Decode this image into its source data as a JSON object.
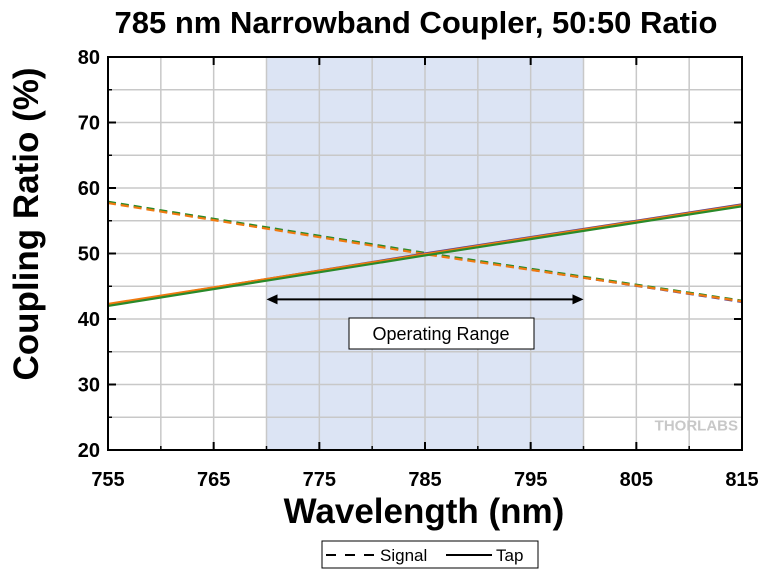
{
  "chart_data": {
    "type": "line",
    "title": "785 nm Narrowband Coupler, 50:50 Ratio",
    "xlabel": "Wavelength (nm)",
    "ylabel": "Coupling Ratio (%)",
    "xlim": [
      755,
      815
    ],
    "ylim": [
      20,
      80
    ],
    "xticks": [
      755,
      765,
      775,
      785,
      795,
      805,
      815
    ],
    "yticks": [
      20,
      30,
      40,
      50,
      60,
      70,
      80
    ],
    "grid": true,
    "shaded_region": {
      "x": [
        770,
        800
      ],
      "color": "#dce4f4"
    },
    "annotation": {
      "text": "Operating Range",
      "x_range": [
        770,
        800
      ],
      "y": 43
    },
    "series": [
      {
        "name": "Signal",
        "style": "dashed",
        "color": "#5a3f8c",
        "x": [
          755,
          785,
          815
        ],
        "y": [
          57.8,
          50.0,
          42.6
        ]
      },
      {
        "name": "Signal",
        "style": "dashed",
        "color": "#2a8a2a",
        "x": [
          755,
          785,
          815
        ],
        "y": [
          57.9,
          50.1,
          42.8
        ]
      },
      {
        "name": "Signal",
        "style": "dashed",
        "color": "#f07a10",
        "x": [
          755,
          785,
          815
        ],
        "y": [
          57.7,
          49.9,
          42.7
        ]
      },
      {
        "name": "Tap",
        "style": "solid",
        "color": "#5a3f8c",
        "x": [
          755,
          785,
          815
        ],
        "y": [
          42.2,
          50.0,
          57.5
        ]
      },
      {
        "name": "Tap",
        "style": "solid",
        "color": "#f07a10",
        "x": [
          755,
          785,
          815
        ],
        "y": [
          42.3,
          49.9,
          57.4
        ]
      },
      {
        "name": "Tap",
        "style": "solid",
        "color": "#2a8a2a",
        "x": [
          755,
          785,
          815
        ],
        "y": [
          42.0,
          49.7,
          57.2
        ]
      }
    ],
    "legend": {
      "placement": "bottom",
      "entries": [
        {
          "label": "Signal",
          "style": "dashed"
        },
        {
          "label": "Tap",
          "style": "solid"
        }
      ]
    }
  },
  "watermark": "THORLABS"
}
